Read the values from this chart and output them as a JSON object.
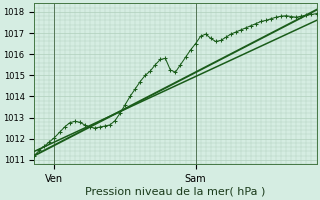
{
  "bg_color": "#d5ede2",
  "grid_color": "#b0d0bc",
  "line_color": "#1a5c1a",
  "xlabel": "Pression niveau de la mer( hPa )",
  "ylim": [
    1010.8,
    1018.4
  ],
  "xlim": [
    0,
    56
  ],
  "yticks": [
    1011,
    1012,
    1013,
    1014,
    1015,
    1016,
    1017,
    1018
  ],
  "ven_x": 4,
  "sam_x": 32,
  "trend_x0": 0,
  "trend_x1": 56,
  "trend1_y0": 1011.2,
  "trend1_y1": 1018.1,
  "trend2_y0": 1011.4,
  "trend2_y1": 1017.6,
  "forecast_x": [
    0,
    1,
    2,
    3,
    4,
    5,
    6,
    7,
    8,
    9,
    10,
    11,
    12,
    13,
    14,
    15,
    16,
    17,
    18,
    19,
    20,
    21,
    22,
    23,
    24,
    25,
    26,
    27,
    28,
    29,
    30,
    31,
    32,
    33,
    34,
    35,
    36,
    37,
    38,
    39,
    40,
    41,
    42,
    43,
    44,
    45,
    46,
    47,
    48,
    49,
    50,
    51,
    52,
    53,
    54,
    55,
    56
  ],
  "forecast_y": [
    1011.2,
    1011.45,
    1011.65,
    1011.85,
    1012.05,
    1012.3,
    1012.55,
    1012.75,
    1012.82,
    1012.78,
    1012.65,
    1012.55,
    1012.5,
    1012.55,
    1012.6,
    1012.65,
    1012.85,
    1013.2,
    1013.6,
    1014.0,
    1014.35,
    1014.7,
    1015.0,
    1015.2,
    1015.5,
    1015.75,
    1015.8,
    1015.25,
    1015.15,
    1015.5,
    1015.85,
    1016.2,
    1016.5,
    1016.85,
    1016.95,
    1016.75,
    1016.6,
    1016.65,
    1016.8,
    1016.95,
    1017.05,
    1017.15,
    1017.25,
    1017.35,
    1017.45,
    1017.55,
    1017.6,
    1017.68,
    1017.75,
    1017.8,
    1017.82,
    1017.78,
    1017.75,
    1017.8,
    1017.85,
    1017.88,
    1017.92
  ],
  "tick_fontsize": 6,
  "xlabel_fontsize": 8
}
